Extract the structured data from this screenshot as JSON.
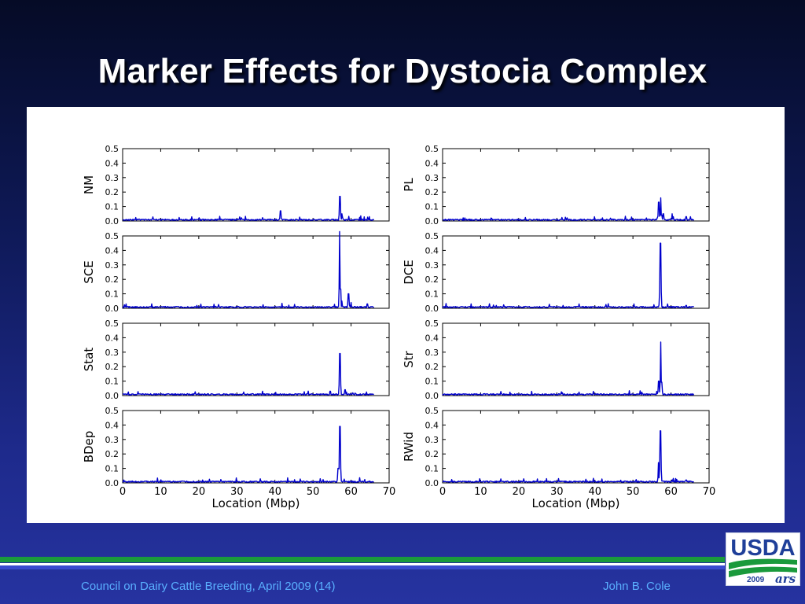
{
  "slide": {
    "title": "Marker Effects for Dystocia Complex",
    "footer_left": "Council on Dairy Cattle Breeding, April 2009 (14)",
    "footer_right": "John B. Cole",
    "logo_text": "USDA",
    "logo_year": "2009"
  },
  "colors": {
    "line": "#0000cc",
    "usda_blue": "#1f3f99",
    "usda_green": "#1a9a3c"
  },
  "chart_data": [
    {
      "type": "line",
      "ylabel": "NM",
      "xlabel": "",
      "xlim": [
        0,
        70
      ],
      "ylim": [
        0,
        0.5
      ],
      "y_ticks": [
        "0.0",
        "0.1",
        "0.2",
        "0.3",
        "0.4",
        "0.5"
      ],
      "x_ticks": [],
      "baseline": 0.01,
      "peaks": [
        [
          41.5,
          0.07
        ],
        [
          57.1,
          0.17
        ],
        [
          57.6,
          0.05
        ],
        [
          64.8,
          0.03
        ]
      ]
    },
    {
      "type": "line",
      "ylabel": "PL",
      "xlabel": "",
      "xlim": [
        0,
        70
      ],
      "ylim": [
        0,
        0.5
      ],
      "y_ticks": [
        "0.0",
        "0.1",
        "0.2",
        "0.3",
        "0.4",
        "0.5"
      ],
      "x_ticks": [],
      "baseline": 0.01,
      "peaks": [
        [
          56.8,
          0.13
        ],
        [
          57.3,
          0.16
        ],
        [
          58.0,
          0.05
        ],
        [
          60.3,
          0.05
        ],
        [
          64.0,
          0.03
        ]
      ]
    },
    {
      "type": "line",
      "ylabel": "SCE",
      "xlabel": "",
      "xlim": [
        0,
        70
      ],
      "ylim": [
        0,
        0.5
      ],
      "y_ticks": [
        "0.0",
        "0.1",
        "0.2",
        "0.3",
        "0.4",
        "0.5"
      ],
      "x_ticks": [],
      "baseline": 0.01,
      "peaks": [
        [
          57.0,
          0.53
        ],
        [
          57.6,
          0.05
        ],
        [
          59.3,
          0.1
        ],
        [
          60.0,
          0.04
        ],
        [
          64.3,
          0.03
        ]
      ]
    },
    {
      "type": "line",
      "ylabel": "DCE",
      "xlabel": "",
      "xlim": [
        0,
        70
      ],
      "ylim": [
        0,
        0.5
      ],
      "y_ticks": [
        "0.0",
        "0.1",
        "0.2",
        "0.3",
        "0.4",
        "0.5"
      ],
      "x_ticks": [],
      "baseline": 0.01,
      "peaks": [
        [
          57.2,
          0.45
        ],
        [
          64.0,
          0.02
        ]
      ]
    },
    {
      "type": "line",
      "ylabel": "Stat",
      "xlabel": "",
      "xlim": [
        0,
        70
      ],
      "ylim": [
        0,
        0.5
      ],
      "y_ticks": [
        "0.0",
        "0.1",
        "0.2",
        "0.3",
        "0.4",
        "0.5"
      ],
      "x_ticks": [],
      "baseline": 0.01,
      "peaks": [
        [
          54.5,
          0.03
        ],
        [
          57.1,
          0.29
        ],
        [
          58.4,
          0.04
        ]
      ]
    },
    {
      "type": "line",
      "ylabel": "Str",
      "xlabel": "",
      "xlim": [
        0,
        70
      ],
      "ylim": [
        0,
        0.5
      ],
      "y_ticks": [
        "0.0",
        "0.1",
        "0.2",
        "0.3",
        "0.4",
        "0.5"
      ],
      "x_ticks": [],
      "baseline": 0.01,
      "peaks": [
        [
          56.8,
          0.1
        ],
        [
          57.3,
          0.37
        ]
      ]
    },
    {
      "type": "line",
      "ylabel": "BDep",
      "xlabel": "Location (Mbp)",
      "xlim": [
        0,
        70
      ],
      "ylim": [
        0,
        0.5
      ],
      "y_ticks": [
        "0.0",
        "0.1",
        "0.2",
        "0.3",
        "0.4",
        "0.5"
      ],
      "x_ticks": [
        "0",
        "10",
        "20",
        "30",
        "40",
        "50",
        "60",
        "70"
      ],
      "baseline": 0.01,
      "peaks": [
        [
          56.6,
          0.1
        ],
        [
          57.1,
          0.39
        ]
      ]
    },
    {
      "type": "line",
      "ylabel": "RWid",
      "xlabel": "Location (Mbp)",
      "xlim": [
        0,
        70
      ],
      "ylim": [
        0,
        0.5
      ],
      "y_ticks": [
        "0.0",
        "0.1",
        "0.2",
        "0.3",
        "0.4",
        "0.5"
      ],
      "x_ticks": [
        "0",
        "10",
        "20",
        "30",
        "40",
        "50",
        "60",
        "70"
      ],
      "baseline": 0.01,
      "peaks": [
        [
          56.7,
          0.14
        ],
        [
          57.2,
          0.36
        ],
        [
          64.0,
          0.02
        ]
      ]
    }
  ]
}
